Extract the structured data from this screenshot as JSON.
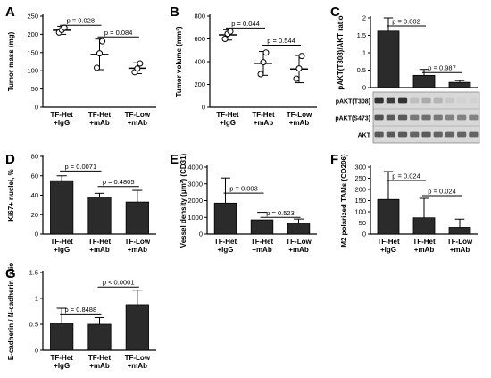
{
  "panels": [
    {
      "letter": "A",
      "chart_data": {
        "type": "scatter",
        "categories": [
          "TF-Het\n+IgG",
          "TF-Het\n+mAb",
          "TF-Low\n+mAb"
        ],
        "ylabel": "Tumor mass (mg)",
        "ylim": [
          0,
          250
        ],
        "yticks": [
          0,
          50,
          100,
          150,
          200,
          250
        ],
        "marker": "circle",
        "groups": [
          {
            "mean": 211,
            "sd": 11,
            "points": [
              205,
              212,
              218
            ]
          },
          {
            "mean": 145,
            "sd": 42,
            "points": [
              108,
              148,
              181
            ]
          },
          {
            "mean": 107,
            "sd": 15,
            "points": [
              96,
              106,
              120
            ]
          }
        ],
        "annotations": [
          {
            "label": "p = 0.028",
            "from": 0,
            "to": 1,
            "y": 225
          },
          {
            "label": "p = 0.084",
            "from": 1,
            "to": 2,
            "y": 193
          }
        ]
      }
    },
    {
      "letter": "B",
      "chart_data": {
        "type": "scatter",
        "categories": [
          "TF-Het\n+IgG",
          "TF-Het\n+mAb",
          "TF-Low\n+mAb"
        ],
        "ylabel": "Tumor volume (mm³)",
        "ylim": [
          0,
          800
        ],
        "yticks": [
          0,
          200,
          400,
          600,
          800
        ],
        "marker": "circle",
        "groups": [
          {
            "mean": 635,
            "sd": 45,
            "points": [
              600,
              645,
              665
            ]
          },
          {
            "mean": 385,
            "sd": 105,
            "points": [
              290,
              395,
              480
            ]
          },
          {
            "mean": 335,
            "sd": 120,
            "points": [
              250,
              340,
              450
            ]
          }
        ],
        "annotations": [
          {
            "label": "p = 0.044",
            "from": 0,
            "to": 1,
            "y": 695
          },
          {
            "label": "p = 0.544",
            "from": 1,
            "to": 2,
            "y": 545
          }
        ]
      }
    },
    {
      "letter": "C",
      "chart_data": {
        "type": "bar",
        "categories": [
          "TF-Het\n+IgG",
          "TF-Het\n+mAb",
          "TF-Low\n+mAb"
        ],
        "ylabel": "pAKT(T308)/AKT ratio",
        "ylim": [
          0,
          2
        ],
        "yticks": [
          0,
          0.5,
          1,
          1.5,
          2
        ],
        "values": [
          1.62,
          0.35,
          0.15
        ],
        "errors": [
          0.38,
          0.17,
          0.05
        ],
        "annotations": [
          {
            "label": "p = 0.002",
            "from": 0,
            "to": 1,
            "y": 1.77
          },
          {
            "label": "p = 0.987",
            "from": 1,
            "to": 2,
            "y": 0.43
          }
        ]
      },
      "blot_rows": [
        "pAKT(T308)",
        "pAKT(S473)",
        "AKT"
      ]
    },
    {
      "letter": "D",
      "chart_data": {
        "type": "bar",
        "categories": [
          "TF-Het\n+IgG",
          "TF-Het\n+mAb",
          "TF-Low\n+mAb"
        ],
        "ylabel": "Ki67+ nuclei, %",
        "ylim": [
          0,
          80
        ],
        "yticks": [
          0,
          20,
          40,
          60,
          80
        ],
        "values": [
          55,
          38,
          33
        ],
        "errors": [
          5,
          4,
          12
        ],
        "annotations": [
          {
            "label": "p = 0.0071",
            "from": 0,
            "to": 1,
            "y": 65
          },
          {
            "label": "p = 0.4805",
            "from": 1,
            "to": 2,
            "y": 49
          }
        ]
      }
    },
    {
      "letter": "E",
      "chart_data": {
        "type": "bar",
        "categories": [
          "TF-Het\n+IgG",
          "TF-Het\n+mAb",
          "TF-Low\n+mAb"
        ],
        "ylabel": "Vessel density (μm²) (CD31)",
        "ylim": [
          0,
          4000
        ],
        "yticks": [
          0,
          1000,
          2000,
          3000,
          4000
        ],
        "values": [
          1850,
          850,
          650
        ],
        "errors": [
          1500,
          450,
          250
        ],
        "annotations": [
          {
            "label": "p = 0.003",
            "from": 0,
            "to": 1,
            "y": 2450
          },
          {
            "label": "p = 0.523",
            "from": 1,
            "to": 2,
            "y": 1000
          }
        ]
      }
    },
    {
      "letter": "F",
      "chart_data": {
        "type": "bar",
        "categories": [
          "TF-Het\n+IgG",
          "TF-Het\n+mAb",
          "TF-Low\n+mAb"
        ],
        "ylabel": "M2 polarized TAMs (CD206)",
        "ylim": [
          0,
          300
        ],
        "yticks": [
          0,
          50,
          100,
          150,
          200,
          250,
          300
        ],
        "values": [
          155,
          73,
          30
        ],
        "errors": [
          125,
          87,
          37
        ],
        "annotations": [
          {
            "label": "p = 0.024",
            "from": 0,
            "to": 1,
            "y": 240
          },
          {
            "label": "p = 0.024",
            "from": 1,
            "to": 2,
            "y": 172
          }
        ]
      }
    },
    {
      "letter": "G",
      "chart_data": {
        "type": "bar",
        "categories": [
          "TF-Het\n+IgG",
          "TF-Het\n+mAb",
          "TF-Low\n+mAb"
        ],
        "ylabel": "E-cadherin / N-cadherin ratio",
        "ylim": [
          0,
          1.5
        ],
        "yticks": [
          0,
          0.5,
          1,
          1.5
        ],
        "values": [
          0.52,
          0.5,
          0.88
        ],
        "errors": [
          0.29,
          0.13,
          0.28
        ],
        "annotations": [
          {
            "label": "p = 0.8488",
            "from": 0,
            "to": 1,
            "y": 0.7
          },
          {
            "label": "p < 0.0001",
            "from": 1,
            "to": 2,
            "y": 1.22
          }
        ]
      }
    }
  ]
}
